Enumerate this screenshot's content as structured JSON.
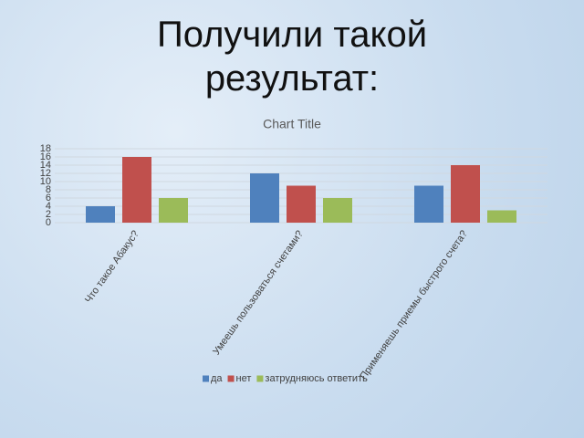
{
  "slide": {
    "title": "Получили такой результат:"
  },
  "chart_data": {
    "type": "bar",
    "title": "Chart Title",
    "categories": [
      "Что такое Абакус?",
      "Умеешь пользоваться счетами?",
      "Применяешь приемы быстрого счета?"
    ],
    "series": [
      {
        "name": "да",
        "color": "#4f81bd",
        "values": [
          4,
          12,
          9
        ]
      },
      {
        "name": "нет",
        "color": "#c0504d",
        "values": [
          16,
          9,
          14
        ]
      },
      {
        "name": "затрудняюсь ответить",
        "color": "#9bbb59",
        "values": [
          6,
          6,
          3
        ]
      }
    ],
    "ylim": [
      0,
      18
    ],
    "yticks": [
      0,
      2,
      4,
      6,
      8,
      10,
      12,
      14,
      16,
      18
    ],
    "grid": true,
    "legend": "bottom"
  }
}
